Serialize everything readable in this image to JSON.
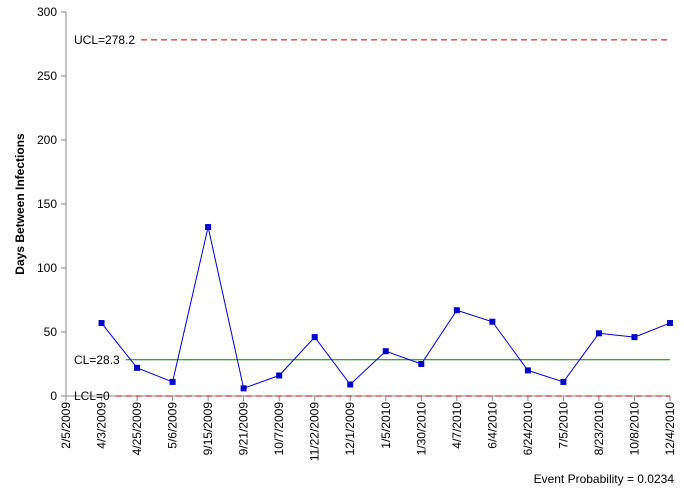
{
  "chart_data": {
    "type": "line",
    "y_label": "Days Between Infections",
    "footnote": "Event Probability = 0.0234",
    "categories": [
      "2/5/2009",
      "4/3/2009",
      "4/25/2009",
      "5/6/2009",
      "9/15/2009",
      "9/21/2009",
      "10/7/2009",
      "11/22/2009",
      "12/1/2009",
      "1/5/2010",
      "1/30/2010",
      "4/7/2010",
      "6/4/2010",
      "6/24/2010",
      "7/5/2010",
      "8/23/2010",
      "10/8/2010",
      "12/4/2010"
    ],
    "series": [
      {
        "color": "#0000cc",
        "values": [
          null,
          57,
          22,
          11,
          132,
          6,
          16,
          46,
          9,
          35,
          25,
          67,
          58,
          20,
          11,
          49,
          46,
          57
        ]
      }
    ],
    "reference_lines": [
      {
        "value": 278.2,
        "label": "UCL=278.2",
        "color": "#c00000",
        "dashed": true
      },
      {
        "value": 28.3,
        "label": "CL=28.3",
        "color": "#008000",
        "dashed": false
      },
      {
        "value": 0,
        "label": "LCL=0",
        "color": "#c00000",
        "dashed": true
      }
    ],
    "ylim": [
      0,
      300
    ],
    "yticks": [
      0,
      50,
      100,
      150,
      200,
      250,
      300
    ],
    "grid": false
  }
}
